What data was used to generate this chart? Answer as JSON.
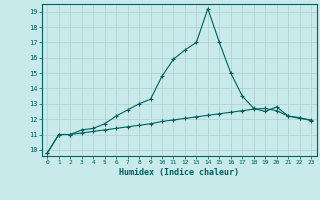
{
  "xlabel": "Humidex (Indice chaleur)",
  "background_color": "#c8eaea",
  "grid_color": "#b0d0d0",
  "line_color": "#006060",
  "xlim": [
    -0.5,
    23.5
  ],
  "ylim": [
    9.6,
    19.5
  ],
  "yticks": [
    10,
    11,
    12,
    13,
    14,
    15,
    16,
    17,
    18,
    19
  ],
  "xticks": [
    0,
    1,
    2,
    3,
    4,
    5,
    6,
    7,
    8,
    9,
    10,
    11,
    12,
    13,
    14,
    15,
    16,
    17,
    18,
    19,
    20,
    21,
    22,
    23
  ],
  "line1_x": [
    0,
    1,
    2,
    3,
    4,
    5,
    6,
    7,
    8,
    9,
    10,
    11,
    12,
    13,
    14,
    15,
    16,
    17,
    18,
    19,
    20,
    21,
    22,
    23
  ],
  "line1_y": [
    9.8,
    11.0,
    11.0,
    11.3,
    11.4,
    11.7,
    12.2,
    12.6,
    13.0,
    13.3,
    14.8,
    15.9,
    16.5,
    17.0,
    19.2,
    17.0,
    15.0,
    13.5,
    12.7,
    12.5,
    12.8,
    12.2,
    12.1,
    11.9
  ],
  "line2_x": [
    0,
    1,
    2,
    3,
    4,
    5,
    6,
    7,
    8,
    9,
    10,
    11,
    12,
    13,
    14,
    15,
    16,
    17,
    18,
    19,
    20,
    21,
    22,
    23
  ],
  "line2_y": [
    9.8,
    11.0,
    11.0,
    11.1,
    11.2,
    11.3,
    11.4,
    11.5,
    11.6,
    11.7,
    11.85,
    11.95,
    12.05,
    12.15,
    12.25,
    12.35,
    12.45,
    12.55,
    12.65,
    12.7,
    12.55,
    12.2,
    12.05,
    11.95
  ]
}
